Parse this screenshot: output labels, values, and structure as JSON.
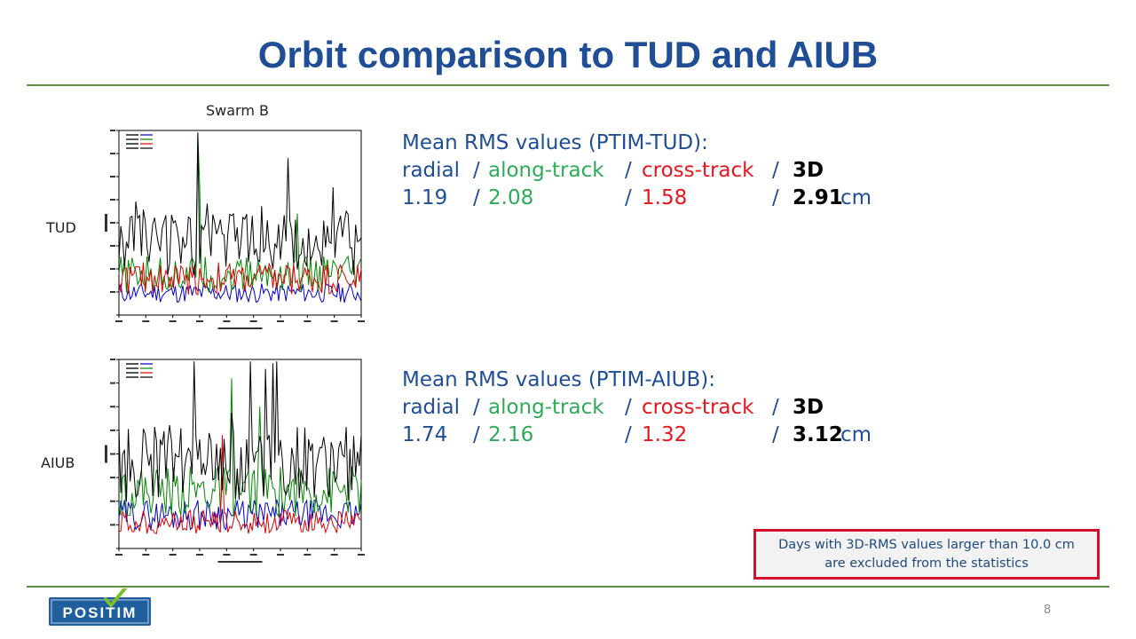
{
  "slide": {
    "title": "Orbit comparison to TUD and AIUB",
    "page_number": "8",
    "note": {
      "line1": "Days with 3D-RMS values larger than 10.0 cm",
      "line2": "are excluded from the statistics"
    }
  },
  "labels": {
    "swarm": "Swarm B",
    "tud": "TUD",
    "aiub": "AIUB"
  },
  "tud_stats": {
    "heading": "Mean RMS values (PTIM-TUD):",
    "components": {
      "radial": "radial",
      "along": "along-track",
      "cross": "cross-track",
      "three_d": "3D"
    },
    "separator": "/",
    "values": {
      "radial": "1.19",
      "along": "2.08",
      "cross": "1.58",
      "three_d": "2.91",
      "unit": "cm"
    }
  },
  "aiub_stats": {
    "heading": "Mean RMS values (PTIM-AIUB):",
    "components": {
      "radial": "radial",
      "along": "along-track",
      "cross": "cross-track",
      "three_d": "3D"
    },
    "separator": "/",
    "values": {
      "radial": "1.74",
      "along": "2.16",
      "cross": "1.32",
      "three_d": "3.12",
      "unit": "cm"
    }
  },
  "logo": {
    "text": "POSITIM"
  },
  "colors": {
    "title": "#1f4e96",
    "radial": "#1f4e96",
    "along_track": "#2faa58",
    "cross_track": "#e8161d",
    "three_d": "#000000",
    "rule": "#5e8f3c",
    "note_border": "#d5102f"
  }
}
